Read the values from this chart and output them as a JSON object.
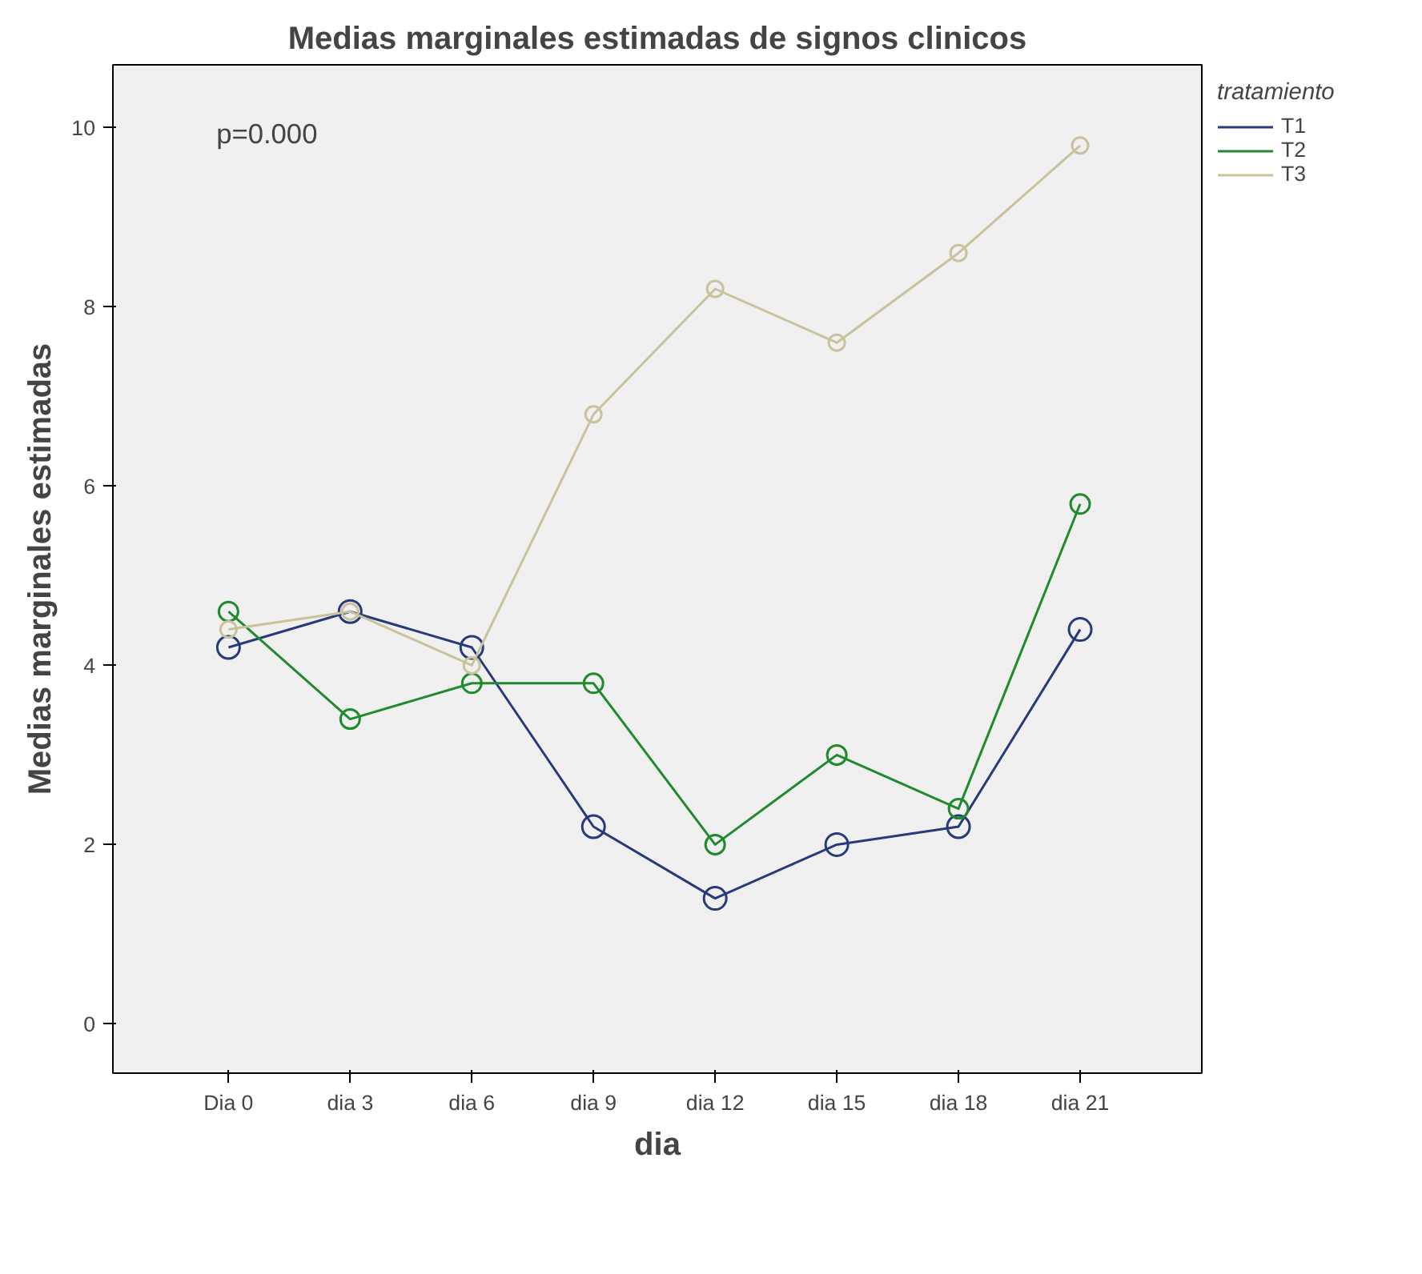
{
  "chart_data": {
    "type": "line",
    "title": "Medias marginales estimadas de signos clinicos",
    "xlabel": "dia",
    "ylabel": "Medias marginales estimadas",
    "legend_title": "tratamiento",
    "categories": [
      "Dia 0",
      "dia 3",
      "dia 6",
      "dia 9",
      "dia 12",
      "dia 15",
      "dia 18",
      "dia 21"
    ],
    "series": [
      {
        "name": "T1",
        "color": "#283a7a",
        "values": [
          4.2,
          4.6,
          4.2,
          2.2,
          1.4,
          2.0,
          2.2,
          4.4
        ]
      },
      {
        "name": "T2",
        "color": "#218a2d",
        "values": [
          4.6,
          3.4,
          3.8,
          3.8,
          2.0,
          3.0,
          2.4,
          5.8
        ]
      },
      {
        "name": "T3",
        "color": "#c9c29d",
        "values": [
          4.4,
          4.6,
          4.0,
          6.8,
          8.2,
          7.6,
          8.6,
          9.8
        ]
      }
    ],
    "ylim": [
      -0.55,
      10.7
    ],
    "yticks": [
      0,
      2,
      4,
      6,
      8,
      10
    ],
    "annotations": [
      "p=0.000"
    ],
    "grid": false,
    "legend": "top right",
    "marker": "circle",
    "line_style": "solid"
  }
}
